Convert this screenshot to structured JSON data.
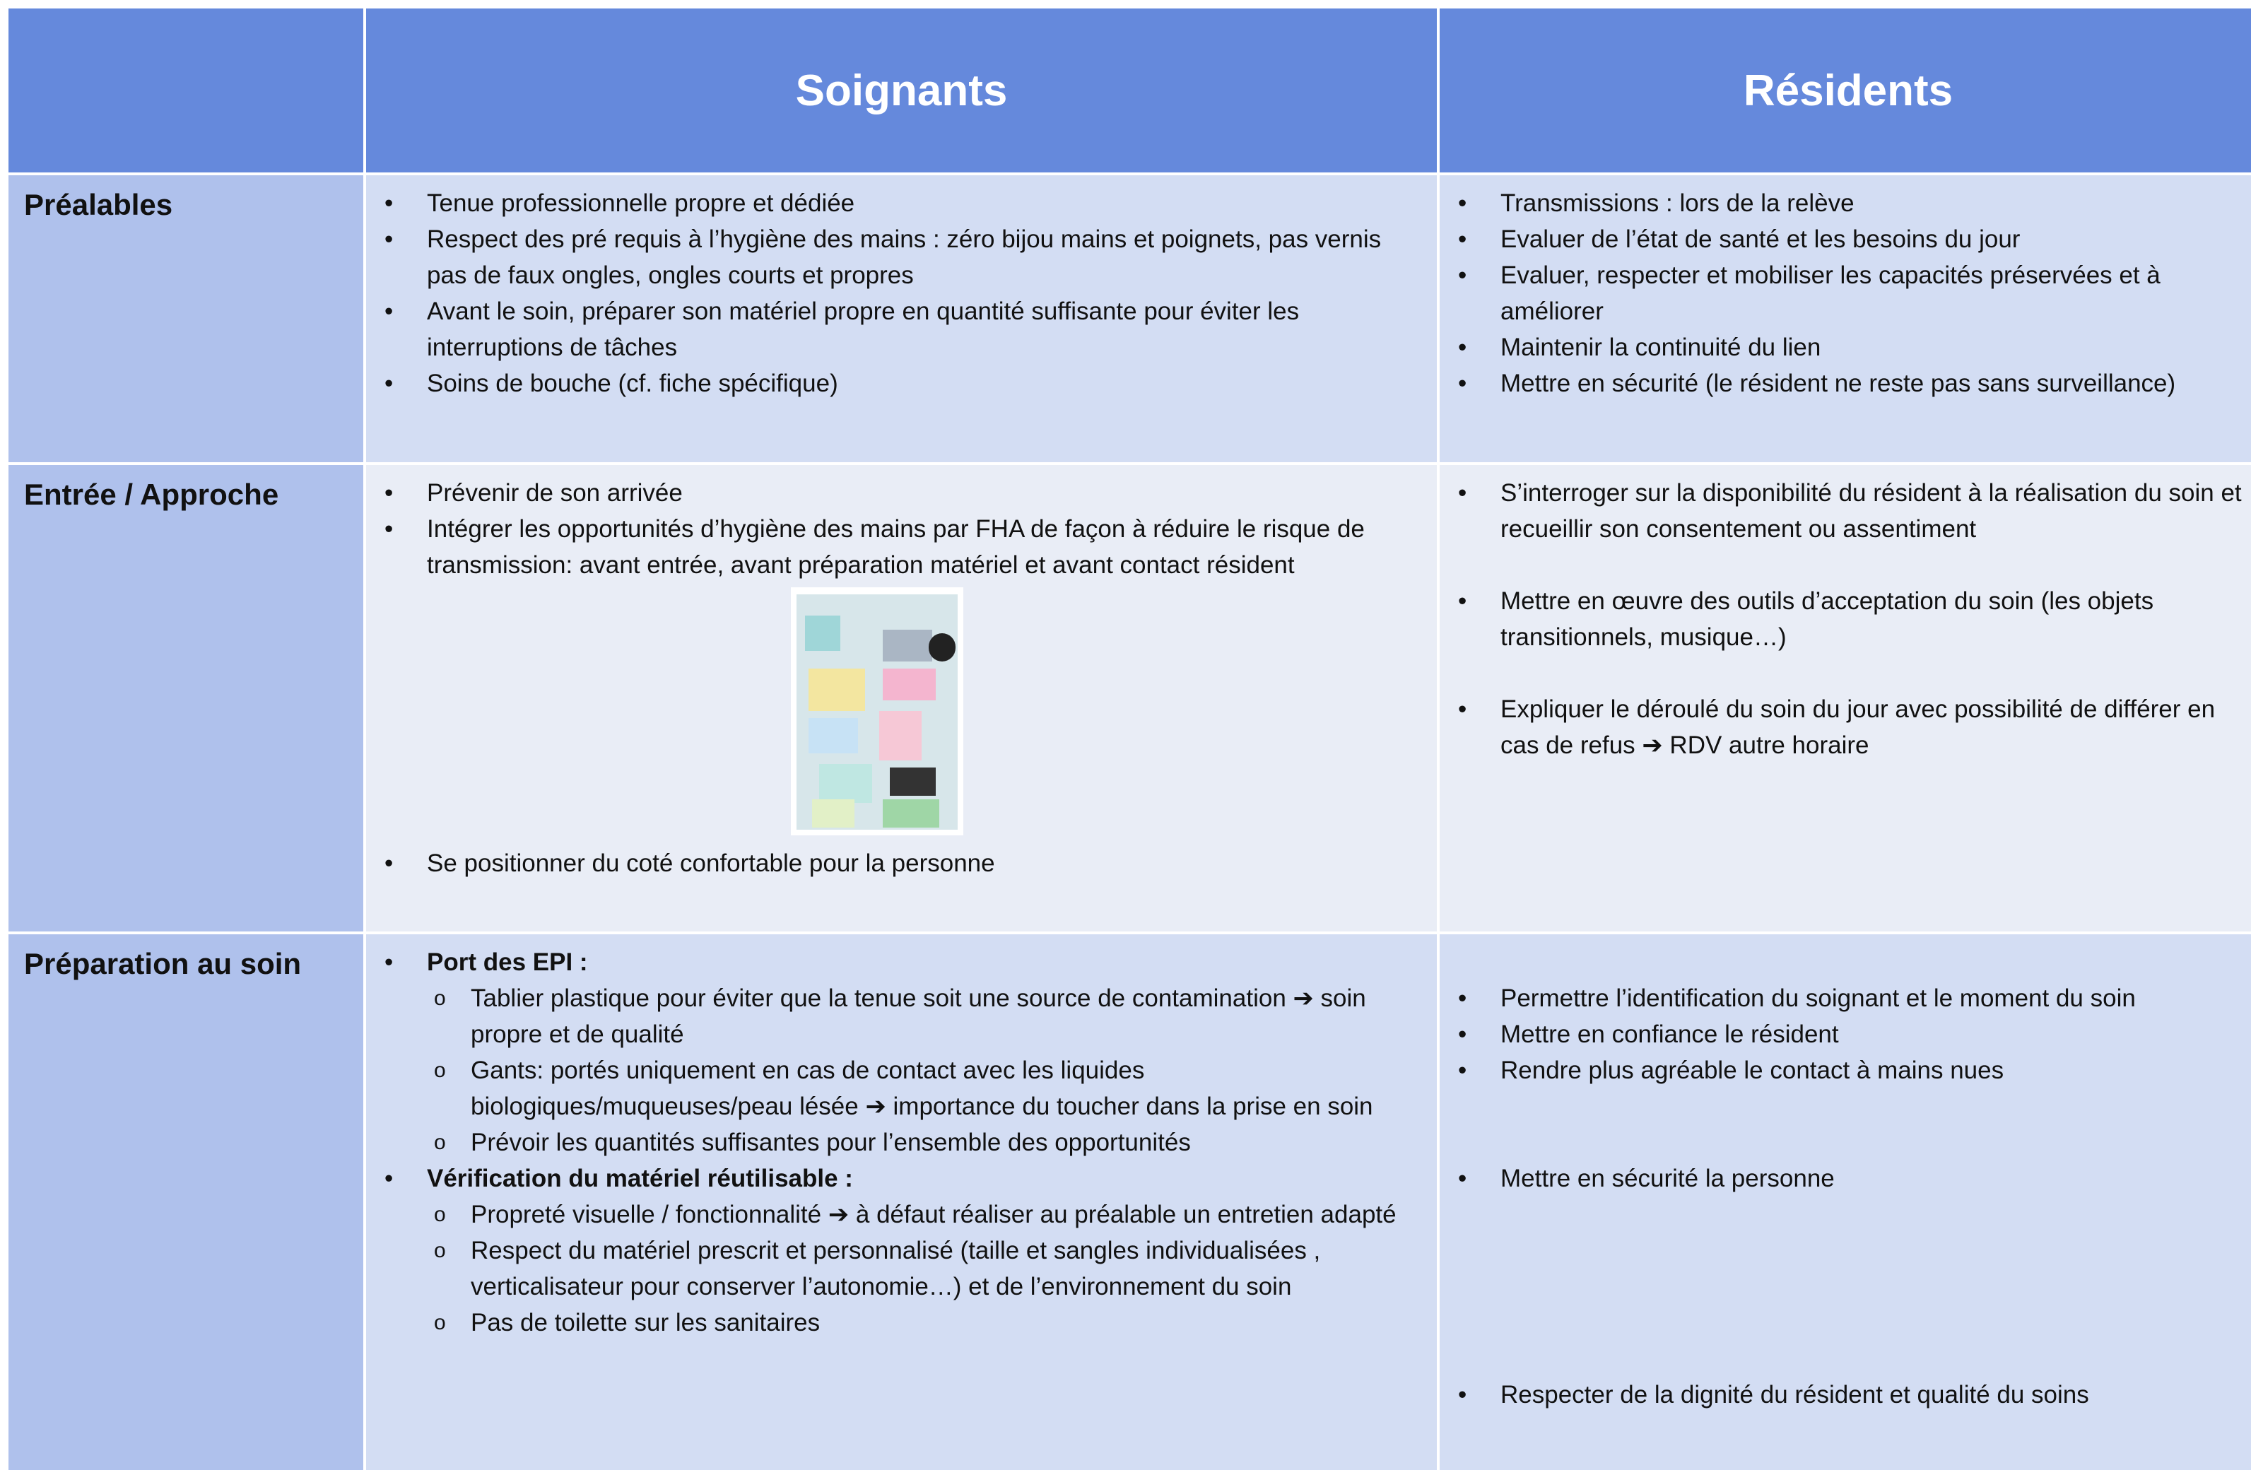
{
  "table": {
    "headers": [
      "Soignants",
      "Résidents"
    ],
    "rows": [
      {
        "label": "Préalables",
        "soignants": [
          "Tenue professionnelle propre et dédiée",
          "Respect des pré requis à l’hygiène des mains : zéro bijou mains et poignets, pas vernis pas de faux ongles, ongles courts et propres",
          "Avant le soin, préparer son matériel propre en quantité suffisante pour éviter les interruptions de tâches",
          "Soins de bouche  (cf. fiche spécifique)"
        ],
        "residents": [
          "Transmissions : lors de la relève",
          "Evaluer de l’état de santé et les besoins du jour",
          "Evaluer, respecter et mobiliser les capacités préservées et à améliorer",
          "Maintenir la continuité du lien",
          "Mettre en sécurité (le résident ne reste pas sans surveillance)"
        ]
      },
      {
        "label": "Entrée / Approche",
        "soignants": [
          "Prévenir de son arrivée",
          "Intégrer les opportunités d’hygiène des mains par FHA de façon à réduire le risque de transmission: avant entrée, avant préparation matériel et avant contact résident",
          "Se positionner du coté confortable pour la personne"
        ],
        "residents": [
          "S’interroger sur la disponibilité du résident à la réalisation du soin et recueillir son consentement ou assentiment",
          "Mettre en œuvre des outils d’acceptation du soin (les objets transitionnels, musique…)",
          "Expliquer le déroulé du soin du jour avec possibilité de différer en cas de refus ➔ RDV autre horaire"
        ]
      },
      {
        "label": "Préparation au soin",
        "soignants": [
          {
            "text": "Port des EPI :",
            "subitems": [
              "Tablier plastique pour éviter que la tenue soit une source de contamination ➔ soin propre et de qualité",
              "Gants: portés uniquement en cas de contact avec les liquides biologiques/muqueuses/peau lésée ➔ importance du toucher dans la prise en soin",
              "Prévoir les quantités suffisantes pour l’ensemble des opportunités"
            ]
          },
          {
            "text": "Vérification du matériel réutilisable :",
            "subitems": [
              "Propreté visuelle / fonctionnalité ➔ à défaut réaliser au préalable un entretien adapté",
              "Respect du matériel prescrit et personnalisé (taille et sangles individualisées , verticalisateur pour conserver l’autonomie…) et de l’environnement du soin",
              "Pas de toilette sur les sanitaires"
            ]
          }
        ],
        "residents": [
          "Permettre l’identification du soignant et le moment du soin",
          "Mettre en confiance le résident",
          "Rendre plus agréable le contact à mains nues",
          "Mettre  en sécurité la personne",
          "Respecter de la dignité du résident et qualité du soins"
        ]
      }
    ]
  }
}
